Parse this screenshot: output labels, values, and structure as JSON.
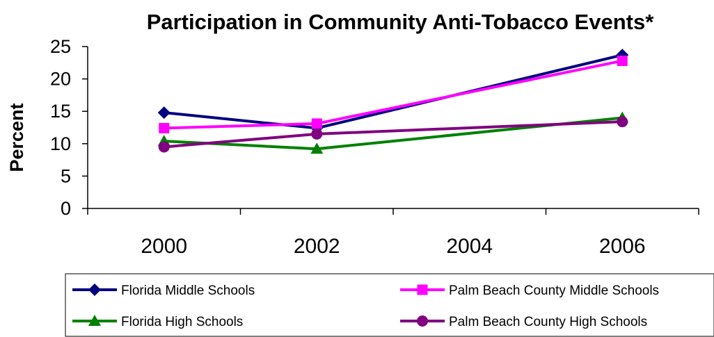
{
  "chart_data": {
    "type": "line",
    "title": "Participation in Community Anti-Tobacco Events*",
    "xlabel": "",
    "ylabel": "Percent",
    "categories": [
      "2000",
      "2002",
      "2004",
      "2006"
    ],
    "ylim": [
      0,
      25
    ],
    "yticks": [
      "0",
      "5",
      "10",
      "15",
      "20",
      "25"
    ],
    "grid": false,
    "legend_position": "bottom",
    "series": [
      {
        "name": "Florida Middle Schools",
        "color": "#000080",
        "marker": "diamond",
        "x": [
          2000,
          2002,
          2006
        ],
        "values": [
          14.8,
          12.4,
          23.7
        ]
      },
      {
        "name": "Palm Beach County Middle Schools",
        "color": "#ff00ff",
        "marker": "square",
        "x": [
          2000,
          2002,
          2006
        ],
        "values": [
          12.4,
          13.1,
          22.8
        ]
      },
      {
        "name": "Florida High Schools",
        "color": "#008000",
        "marker": "triangle",
        "x": [
          2000,
          2002,
          2006
        ],
        "values": [
          10.4,
          9.2,
          14.0
        ]
      },
      {
        "name": "Palm Beach County High Schools",
        "color": "#800080",
        "marker": "circle",
        "x": [
          2000,
          2002,
          2006
        ],
        "values": [
          9.5,
          11.5,
          13.4
        ]
      }
    ]
  }
}
